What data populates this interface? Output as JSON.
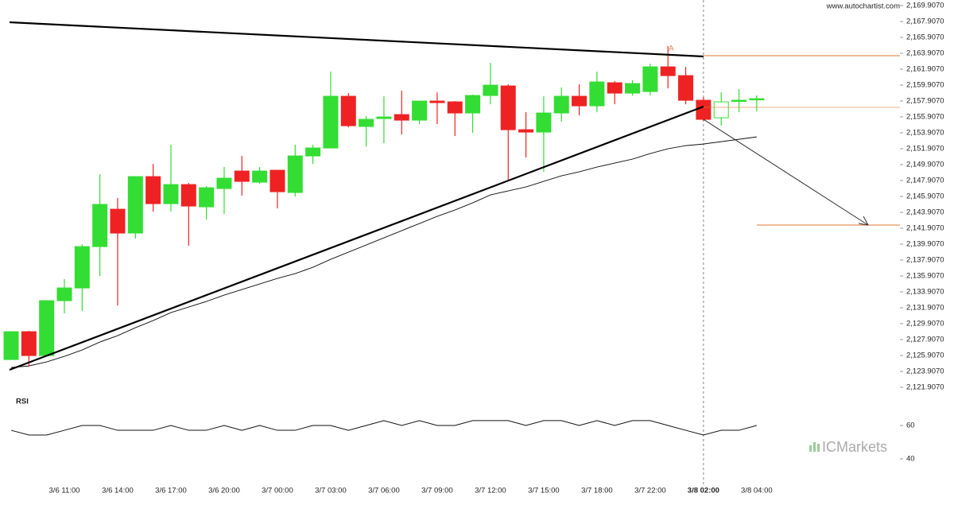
{
  "watermark": "www.autochartist.com",
  "brand": "ICMarkets",
  "chart_data": [
    {
      "type": "candlestick",
      "categories": [
        null,
        null,
        null,
        "3/6 11:00",
        null,
        null,
        "3/6 14:00",
        null,
        null,
        "3/6 17:00",
        null,
        null,
        "3/6 20:00",
        null,
        null,
        "3/7 00:00",
        null,
        null,
        "3/7 03:00",
        null,
        null,
        "3/7 06:00",
        null,
        null,
        "3/7 09:00",
        null,
        null,
        "3/7 12:00",
        null,
        null,
        "3/7 15:00",
        null,
        null,
        "3/7 18:00",
        null,
        null,
        "3/7 22:00",
        null,
        null,
        "3/8 02:00",
        null,
        null,
        "3/8 04:00"
      ],
      "open": [
        2125.4,
        2128.9,
        2125.9,
        2132.8,
        2134.4,
        2139.6,
        2144.3,
        2141.3,
        2148.4,
        2145.0,
        2147.4,
        2144.6,
        2146.9,
        2149.1,
        2147.7,
        2149.2,
        2146.4,
        2151.0,
        2152.0,
        2158.5,
        2154.7,
        2155.7,
        2156.2,
        2155.5,
        2157.9,
        2157.8,
        2156.4,
        2158.6,
        2159.8,
        2154.3,
        2154.0,
        2156.4,
        2158.5,
        2157.3,
        2160.2,
        2158.9,
        2159.1,
        2162.2,
        2161.1,
        2158.0,
        2155.8,
        2157.9,
        2158.1
      ],
      "high": [
        2128.9,
        2129.0,
        2132.8,
        2135.5,
        2139.9,
        2148.7,
        2145.7,
        2148.4,
        2150.0,
        2152.4,
        2147.6,
        2147.2,
        2149.6,
        2151.0,
        2149.6,
        2149.2,
        2152.4,
        2152.4,
        2161.6,
        2158.9,
        2156.0,
        2158.5,
        2159.2,
        2157.9,
        2159.0,
        2157.9,
        2158.7,
        2162.7,
        2160.0,
        2156.5,
        2158.5,
        2159.6,
        2160.0,
        2161.6,
        2160.4,
        2160.5,
        2162.6,
        2164.8,
        2162.2,
        2158.4,
        2159.0,
        2159.4,
        2158.6
      ],
      "low": [
        2125.4,
        2124.5,
        2125.9,
        2131.2,
        2131.5,
        2135.9,
        2132.2,
        2140.6,
        2144.0,
        2144.0,
        2139.7,
        2143.0,
        2143.7,
        2146.0,
        2147.5,
        2144.4,
        2145.9,
        2150.0,
        2152.0,
        2154.6,
        2152.2,
        2152.6,
        2153.7,
        2155.0,
        2155.0,
        2153.5,
        2153.9,
        2157.5,
        2147.9,
        2150.8,
        2149.0,
        2155.3,
        2156.1,
        2156.5,
        2157.5,
        2158.6,
        2158.6,
        2159.5,
        2157.5,
        2155.4,
        2154.8,
        2156.5,
        2156.6
      ],
      "close": [
        2128.9,
        2125.9,
        2132.8,
        2134.4,
        2139.6,
        2144.9,
        2141.3,
        2148.4,
        2145.0,
        2147.4,
        2144.7,
        2147.0,
        2148.2,
        2147.8,
        2149.1,
        2146.5,
        2151.0,
        2152.0,
        2158.5,
        2154.8,
        2155.6,
        2155.9,
        2155.5,
        2157.9,
        2157.7,
        2156.4,
        2158.6,
        2159.9,
        2154.3,
        2154.0,
        2156.4,
        2158.5,
        2157.3,
        2160.3,
        2158.9,
        2160.1,
        2162.2,
        2161.1,
        2158.0,
        2155.6,
        2157.8,
        2158.0,
        2158.2
      ],
      "moving_average": [
        2124.4,
        2124.6,
        2125.1,
        2125.8,
        2126.6,
        2127.6,
        2128.4,
        2129.4,
        2130.3,
        2131.3,
        2132.0,
        2132.7,
        2133.5,
        2134.2,
        2134.9,
        2135.6,
        2136.2,
        2137.0,
        2138.0,
        2138.9,
        2139.8,
        2140.7,
        2141.6,
        2142.5,
        2143.4,
        2144.2,
        2145.1,
        2146.1,
        2146.6,
        2147.1,
        2147.8,
        2148.5,
        2149.0,
        2149.6,
        2150.1,
        2150.6,
        2151.3,
        2151.9,
        2152.3,
        2152.5,
        2152.8,
        2153.1,
        2153.4
      ],
      "up_color": "#33dd33",
      "down_color": "#ee2222",
      "ma_color": "#111111",
      "ylim": [
        2121.907,
        2169.907
      ],
      "yticks": [
        {
          "value": 2121.907,
          "label": "2,121.9070"
        },
        {
          "value": 2123.907,
          "label": "2,123.9070"
        },
        {
          "value": 2125.907,
          "label": "2,125.9070"
        },
        {
          "value": 2127.907,
          "label": "2,127.9070"
        },
        {
          "value": 2129.907,
          "label": "2,129.9070"
        },
        {
          "value": 2131.907,
          "label": "2,131.9070"
        },
        {
          "value": 2133.907,
          "label": "2,133.9070"
        },
        {
          "value": 2135.907,
          "label": "2,135.9070"
        },
        {
          "value": 2137.907,
          "label": "2,137.9070"
        },
        {
          "value": 2139.907,
          "label": "2,139.9070"
        },
        {
          "value": 2141.907,
          "label": "2,141.9070"
        },
        {
          "value": 2143.907,
          "label": "2,143.9070"
        },
        {
          "value": 2145.907,
          "label": "2,145.9070"
        },
        {
          "value": 2147.907,
          "label": "2,147.9070"
        },
        {
          "value": 2149.907,
          "label": "2,149.9070"
        },
        {
          "value": 2151.907,
          "label": "2,151.9070"
        },
        {
          "value": 2153.907,
          "label": "2,153.9070"
        },
        {
          "value": 2155.907,
          "label": "2,155.9070"
        },
        {
          "value": 2157.907,
          "label": "2,157.9070"
        },
        {
          "value": 2159.907,
          "label": "2,159.9070"
        },
        {
          "value": 2161.907,
          "label": "2,161.9070"
        },
        {
          "value": 2163.907,
          "label": "2,163.9070"
        },
        {
          "value": 2165.907,
          "label": "2,165.9070"
        },
        {
          "value": 2167.907,
          "label": "2,167.9070"
        },
        {
          "value": 2169.907,
          "label": "2,169.9070"
        }
      ],
      "resistance_line": [
        2167.807,
        2163.507
      ],
      "support_line": [
        2124.107,
        2157.207
      ],
      "resistance_level": 2163.607,
      "support_level": 2157.107,
      "target_level": 2142.307,
      "point_label": "A"
    },
    {
      "type": "line",
      "title": "RSI",
      "values": [
        57.1,
        54.3,
        54.3,
        57.1,
        60,
        60,
        57.1,
        57.1,
        57.1,
        60,
        57.1,
        57.1,
        60,
        57.1,
        60,
        57.1,
        57.1,
        60,
        60,
        57.1,
        60,
        62.9,
        60,
        62.9,
        60,
        60,
        62.9,
        62.9,
        62.9,
        60,
        62.9,
        62.9,
        60,
        62.9,
        60,
        62.9,
        62.9,
        60,
        57.1,
        54.3,
        57.1,
        57.1,
        60
      ],
      "color": "#111111",
      "ylim": [
        31.4,
        71.9
      ],
      "yticks": [
        40,
        60
      ]
    }
  ]
}
